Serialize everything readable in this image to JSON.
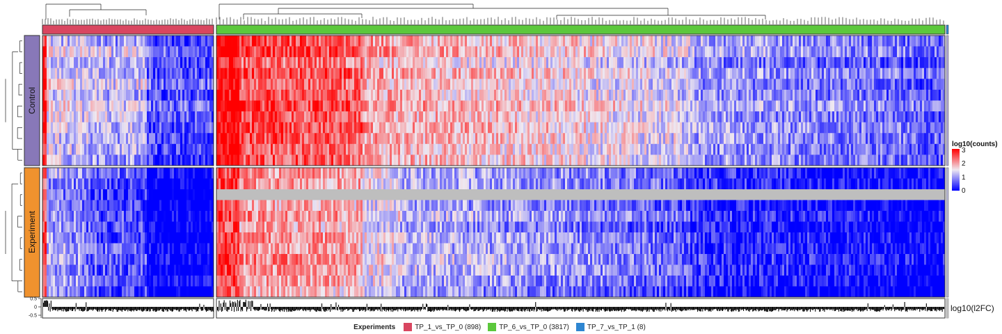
{
  "chart_data": {
    "type": "heatmap",
    "title": "",
    "row_groups": [
      {
        "name": "Control",
        "color": "#8878B8"
      },
      {
        "name": "Experiment",
        "color": "#F0922E"
      }
    ],
    "column_groups": [
      {
        "name": "TP_1_vs_TP_0",
        "count": 898,
        "label": "TP_1_vs_TP_0 (898)",
        "color": "#D94660"
      },
      {
        "name": "TP_6_vs_TP_0",
        "count": 3817,
        "label": "TP_6_vs_TP_0 (3817)",
        "color": "#5CC83C"
      },
      {
        "name": "TP_7_vs_TP_1",
        "count": 8,
        "label": "TP_7_vs_TP_1 (8)",
        "color": "#2E86D1"
      }
    ],
    "legend_title": "Experiments",
    "colorbar": {
      "title": "log10(counts)",
      "ticks": [
        "3",
        "2",
        "1",
        "0"
      ],
      "range": [
        0,
        3
      ],
      "colors": [
        "#0000FF",
        "#EFE8F0",
        "#FF0000"
      ]
    },
    "bottom_annotation": {
      "label": "log10(l2FC)",
      "ticks": [
        "0.5",
        "0",
        "-0.5"
      ],
      "range": [
        -0.5,
        0.5
      ]
    },
    "missing_color": "#BEBEBE"
  }
}
